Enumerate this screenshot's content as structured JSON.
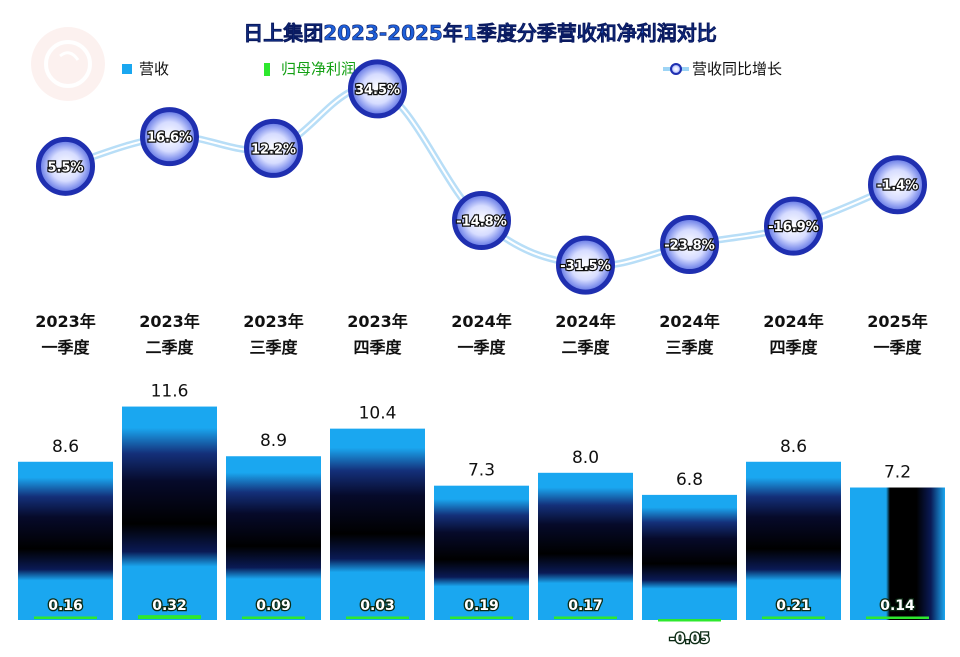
{
  "title": "日上集团2023-2025年1季度分季营收和净利润对比",
  "legend": {
    "revenue": "营收",
    "profit": "归母净利润",
    "growth": "营收同比增长"
  },
  "colors": {
    "revenue": "#1aa7f0",
    "profit": "#2ee82e",
    "growth_line": "#9dd4f5",
    "growth_marker": "#1f2fb0",
    "title": "#1e5fd8"
  },
  "chart_data": {
    "type": "bar",
    "title": "日上集团2023-2025年1季度分季营收和净利润对比",
    "categories": [
      [
        "2023年",
        "一季度"
      ],
      [
        "2023年",
        "二季度"
      ],
      [
        "2023年",
        "三季度"
      ],
      [
        "2023年",
        "四季度"
      ],
      [
        "2024年",
        "一季度"
      ],
      [
        "2024年",
        "二季度"
      ],
      [
        "2024年",
        "三季度"
      ],
      [
        "2024年",
        "四季度"
      ],
      [
        "2025年",
        "一季度"
      ]
    ],
    "series": [
      {
        "name": "营收",
        "type": "bar",
        "values": [
          8.6,
          11.6,
          8.9,
          10.4,
          7.3,
          8.0,
          6.8,
          8.6,
          7.2
        ],
        "labels": [
          "8.6",
          "11.6",
          "8.9",
          "10.4",
          "7.3",
          "8.0",
          "6.8",
          "8.6",
          "7.2"
        ]
      },
      {
        "name": "归母净利润",
        "type": "bar",
        "values": [
          0.16,
          0.32,
          0.09,
          0.03,
          0.19,
          0.17,
          -0.05,
          0.21,
          0.14
        ],
        "labels": [
          "0.16",
          "0.32",
          "0.09",
          "0.03",
          "0.19",
          "0.17",
          "-0.05",
          "0.21",
          "0.14"
        ]
      },
      {
        "name": "营收同比增长",
        "type": "line",
        "values": [
          5.5,
          16.6,
          12.2,
          34.5,
          -14.8,
          -31.5,
          -23.8,
          -16.9,
          -1.4
        ],
        "labels": [
          "5.5%",
          "16.6%",
          "12.2%",
          "34.5%",
          "-14.8%",
          "-31.5%",
          "-23.8%",
          "-16.9%",
          "-1.4%"
        ]
      }
    ],
    "legend_position": "top",
    "grid": false
  }
}
